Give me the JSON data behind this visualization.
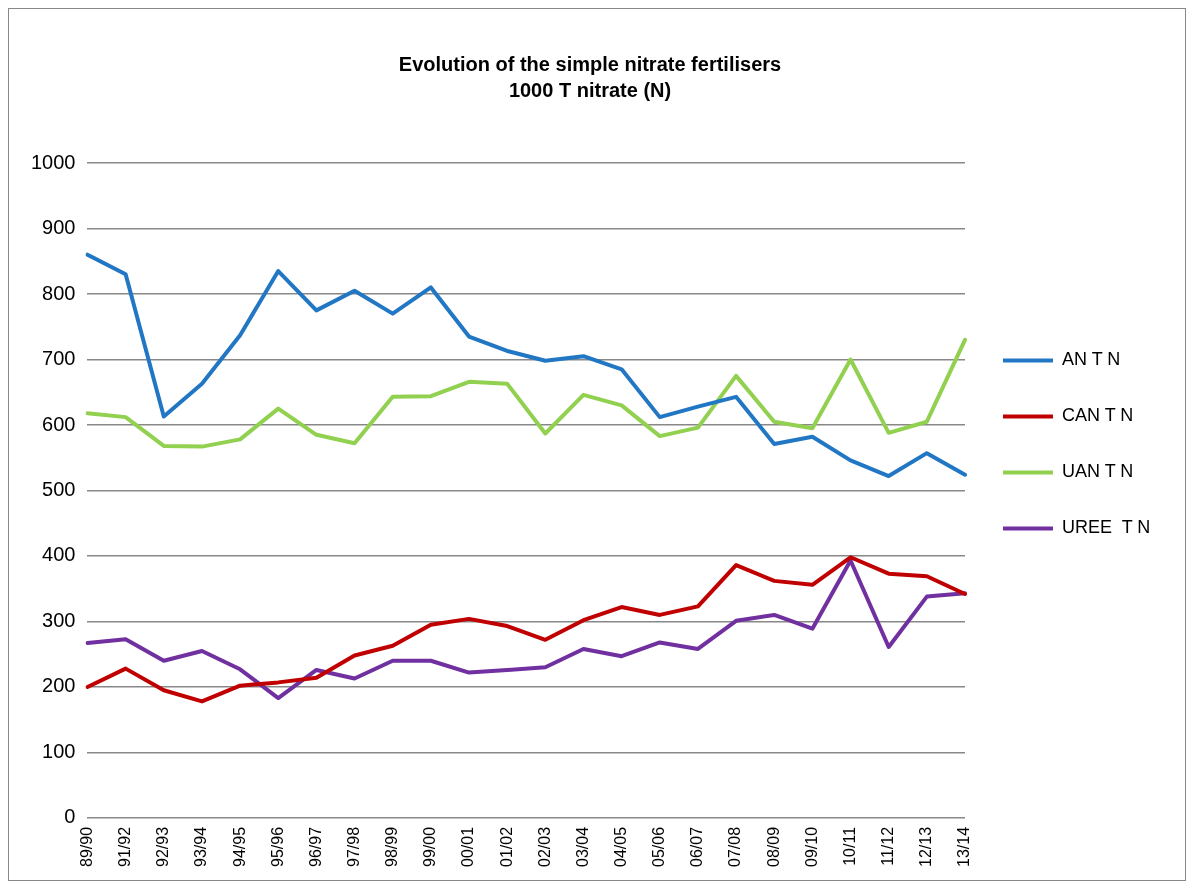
{
  "chart_data": {
    "type": "line",
    "title": "Evolution of the simple nitrate fertilisers",
    "subtitle": "1000 T nitrate (N)",
    "categories": [
      "89/90",
      "91/92",
      "92/93",
      "93/94",
      "94/95",
      "95/96",
      "96/97",
      "97/98",
      "98/99",
      "99/00",
      "00/01",
      "01/02",
      "02/03",
      "03/04",
      "04/05",
      "05/06",
      "06/07",
      "07/08",
      "08/09",
      "09/10",
      "10/11",
      "11/12",
      "12/13",
      "13/14"
    ],
    "series": [
      {
        "name": "AN T N",
        "color": "#2277c4",
        "values": [
          860,
          830,
          613,
          663,
          737,
          835,
          775,
          805,
          770,
          810,
          735,
          713,
          698,
          705,
          685,
          612,
          628,
          643,
          571,
          582,
          546,
          522,
          557,
          524
        ]
      },
      {
        "name": "CAN T N",
        "color": "#c00000",
        "values": [
          200,
          228,
          195,
          178,
          202,
          207,
          214,
          248,
          263,
          295,
          304,
          293,
          272,
          302,
          322,
          310,
          323,
          386,
          362,
          356,
          398,
          373,
          369,
          342
        ]
      },
      {
        "name": "UAN T N",
        "color": "#92d050",
        "values": [
          618,
          612,
          568,
          567,
          578,
          625,
          585,
          572,
          643,
          644,
          666,
          663,
          587,
          646,
          630,
          583,
          596,
          675,
          605,
          595,
          700,
          588,
          605,
          730
        ]
      },
      {
        "name": "UREE  T N",
        "color": "#7030a0",
        "values": [
          267,
          273,
          240,
          255,
          227,
          183,
          226,
          213,
          240,
          240,
          222,
          226,
          230,
          258,
          247,
          268,
          258,
          301,
          310,
          289,
          393,
          261,
          338,
          343
        ]
      }
    ],
    "ylim": [
      0,
      1000
    ],
    "yticks": [
      0,
      100,
      200,
      300,
      400,
      500,
      600,
      700,
      800,
      900,
      1000
    ],
    "grid": "y",
    "legend": "right",
    "marker": "none",
    "line_style": "solid"
  }
}
